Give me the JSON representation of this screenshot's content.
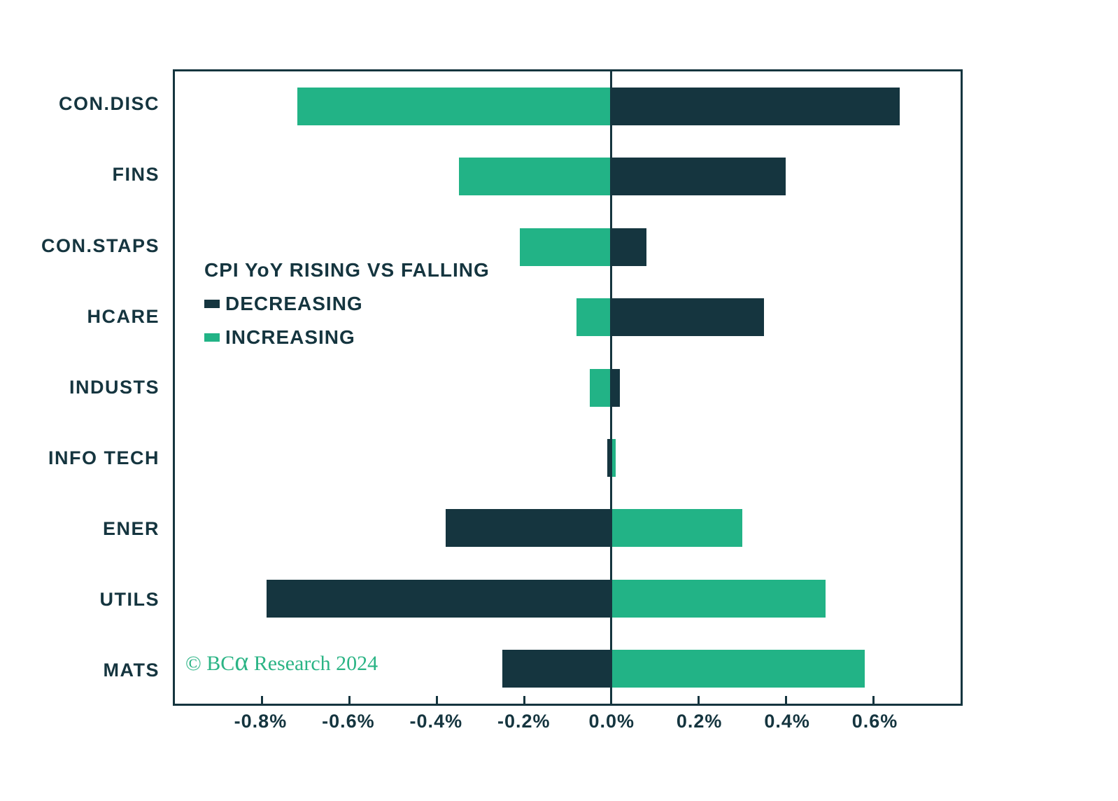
{
  "chart_data": {
    "type": "bar",
    "orientation": "horizontal-diverging",
    "title": "CPI YoY RISING VS FALLING",
    "categories": [
      "CON.DISC",
      "FINS",
      "CON.STAPS",
      "HCARE",
      "INDUSTS",
      "INFO TECH",
      "ENER",
      "UTILS",
      "MATS"
    ],
    "series": [
      {
        "name": "DECREASING",
        "color": "#15353f",
        "values": [
          0.66,
          0.4,
          0.08,
          0.35,
          0.02,
          -0.01,
          -0.38,
          -0.79,
          -0.25
        ]
      },
      {
        "name": "INCREASING",
        "color": "#22b386",
        "values": [
          -0.72,
          -0.35,
          -0.21,
          -0.08,
          -0.05,
          0.01,
          0.3,
          0.49,
          0.58
        ]
      }
    ],
    "xlabel": "",
    "ylabel": "",
    "unit": "%",
    "grid": false,
    "x_axis": {
      "min": -1.0,
      "max": 0.8,
      "tick_values": [
        -0.8,
        -0.6,
        -0.4,
        -0.2,
        0.0,
        0.2,
        0.4,
        0.6
      ],
      "tick_labels": [
        "-0.8%",
        "-0.6%",
        "-0.4%",
        "-0.2%",
        "0.0%",
        "0.2%",
        "0.4%",
        "0.6%"
      ]
    },
    "legend": {
      "title": "CPI YoY RISING VS FALLING",
      "position": "inside-left",
      "entries": [
        {
          "label": "DECREASING",
          "color": "#15353f"
        },
        {
          "label": "INCREASING",
          "color": "#22b386"
        }
      ]
    }
  },
  "footer": {
    "copyright_prefix": "© BC",
    "copyright_alpha": "α",
    "copyright_suffix": " Research 2024"
  },
  "colors": {
    "decreasing": "#15353f",
    "increasing": "#22b386",
    "axis": "#15353f",
    "background": "#ffffff",
    "copyright": "#2bb485"
  }
}
